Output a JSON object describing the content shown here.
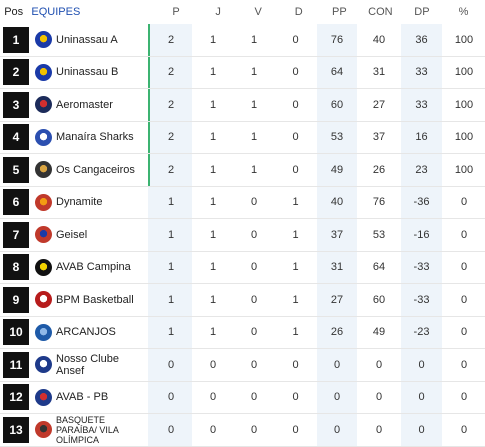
{
  "header": {
    "pos": "Pos",
    "team": "EQUIPES",
    "cols": [
      "P",
      "J",
      "V",
      "D",
      "PP",
      "CON",
      "DP",
      "%"
    ]
  },
  "rows": [
    {
      "pos": "1",
      "team": "Uninassau A",
      "logo_color": "#1a3aa8",
      "logo_accent": "#f2c200",
      "icon": "uninassau-logo-icon",
      "p": "2",
      "j": "1",
      "v": "1",
      "d": "0",
      "pp": "76",
      "con": "40",
      "dp": "36",
      "pct": "100"
    },
    {
      "pos": "2",
      "team": "Uninassau B",
      "logo_color": "#1a3aa8",
      "logo_accent": "#f2c200",
      "icon": "uninassau-logo-icon",
      "p": "2",
      "j": "1",
      "v": "1",
      "d": "0",
      "pp": "64",
      "con": "31",
      "dp": "33",
      "pct": "100"
    },
    {
      "pos": "3",
      "team": "Aeromaster",
      "logo_color": "#1c2b5a",
      "logo_accent": "#d32f2f",
      "icon": "aeromaster-logo-icon",
      "p": "2",
      "j": "1",
      "v": "1",
      "d": "0",
      "pp": "60",
      "con": "27",
      "dp": "33",
      "pct": "100"
    },
    {
      "pos": "4",
      "team": "Manaíra Sharks",
      "logo_color": "#2b4fb0",
      "logo_accent": "#ffffff",
      "icon": "shark-logo-icon",
      "p": "2",
      "j": "1",
      "v": "1",
      "d": "0",
      "pp": "53",
      "con": "37",
      "dp": "16",
      "pct": "100"
    },
    {
      "pos": "5",
      "team": "Os Cangaceiros",
      "logo_color": "#333333",
      "logo_accent": "#d9a441",
      "icon": "cangaceiro-logo-icon",
      "p": "2",
      "j": "1",
      "v": "1",
      "d": "0",
      "pp": "49",
      "con": "26",
      "dp": "23",
      "pct": "100"
    },
    {
      "pos": "6",
      "team": "Dynamite",
      "logo_color": "#c0392b",
      "logo_accent": "#f39c12",
      "icon": "dynamite-logo-icon",
      "p": "1",
      "j": "1",
      "v": "0",
      "d": "1",
      "pp": "40",
      "con": "76",
      "dp": "-36",
      "pct": "0"
    },
    {
      "pos": "7",
      "team": "Geisel",
      "logo_color": "#c0392b",
      "logo_accent": "#1a3aa8",
      "icon": "geisel-logo-icon",
      "p": "1",
      "j": "1",
      "v": "0",
      "d": "1",
      "pp": "37",
      "con": "53",
      "dp": "-16",
      "pct": "0"
    },
    {
      "pos": "8",
      "team": "AVAB Campina",
      "logo_color": "#111111",
      "logo_accent": "#f2d200",
      "icon": "avab-campina-logo-icon",
      "p": "1",
      "j": "1",
      "v": "0",
      "d": "1",
      "pp": "31",
      "con": "64",
      "dp": "-33",
      "pct": "0"
    },
    {
      "pos": "9",
      "team": "BPM Basketball",
      "logo_color": "#b71c1c",
      "logo_accent": "#ffffff",
      "icon": "bpm-logo-icon",
      "p": "1",
      "j": "1",
      "v": "0",
      "d": "1",
      "pp": "27",
      "con": "60",
      "dp": "-33",
      "pct": "0"
    },
    {
      "pos": "10",
      "team": "ARCANJOS",
      "logo_color": "#1e5aa8",
      "logo_accent": "#8fb8e8",
      "icon": "arcanjos-logo-icon",
      "p": "1",
      "j": "1",
      "v": "0",
      "d": "1",
      "pp": "26",
      "con": "49",
      "dp": "-23",
      "pct": "0"
    },
    {
      "pos": "11",
      "team": "Nosso Clube Ansef",
      "logo_color": "#1e3a8a",
      "logo_accent": "#ffffff",
      "icon": "ansef-logo-icon",
      "p": "0",
      "j": "0",
      "v": "0",
      "d": "0",
      "pp": "0",
      "con": "0",
      "dp": "0",
      "pct": "0"
    },
    {
      "pos": "12",
      "team": "AVAB - PB",
      "logo_color": "#1e3a8a",
      "logo_accent": "#d32f2f",
      "icon": "avab-pb-logo-icon",
      "p": "0",
      "j": "0",
      "v": "0",
      "d": "0",
      "pp": "0",
      "con": "0",
      "dp": "0",
      "pct": "0"
    },
    {
      "pos": "13",
      "team": "BASQUETE PARAÍBA/ VILA OLÍMPICA",
      "logo_color": "#c0392b",
      "logo_accent": "#333333",
      "icon": "vila-olimpica-logo-icon",
      "p": "0",
      "j": "0",
      "v": "0",
      "d": "0",
      "pp": "0",
      "con": "0",
      "dp": "0",
      "pct": "0"
    }
  ]
}
